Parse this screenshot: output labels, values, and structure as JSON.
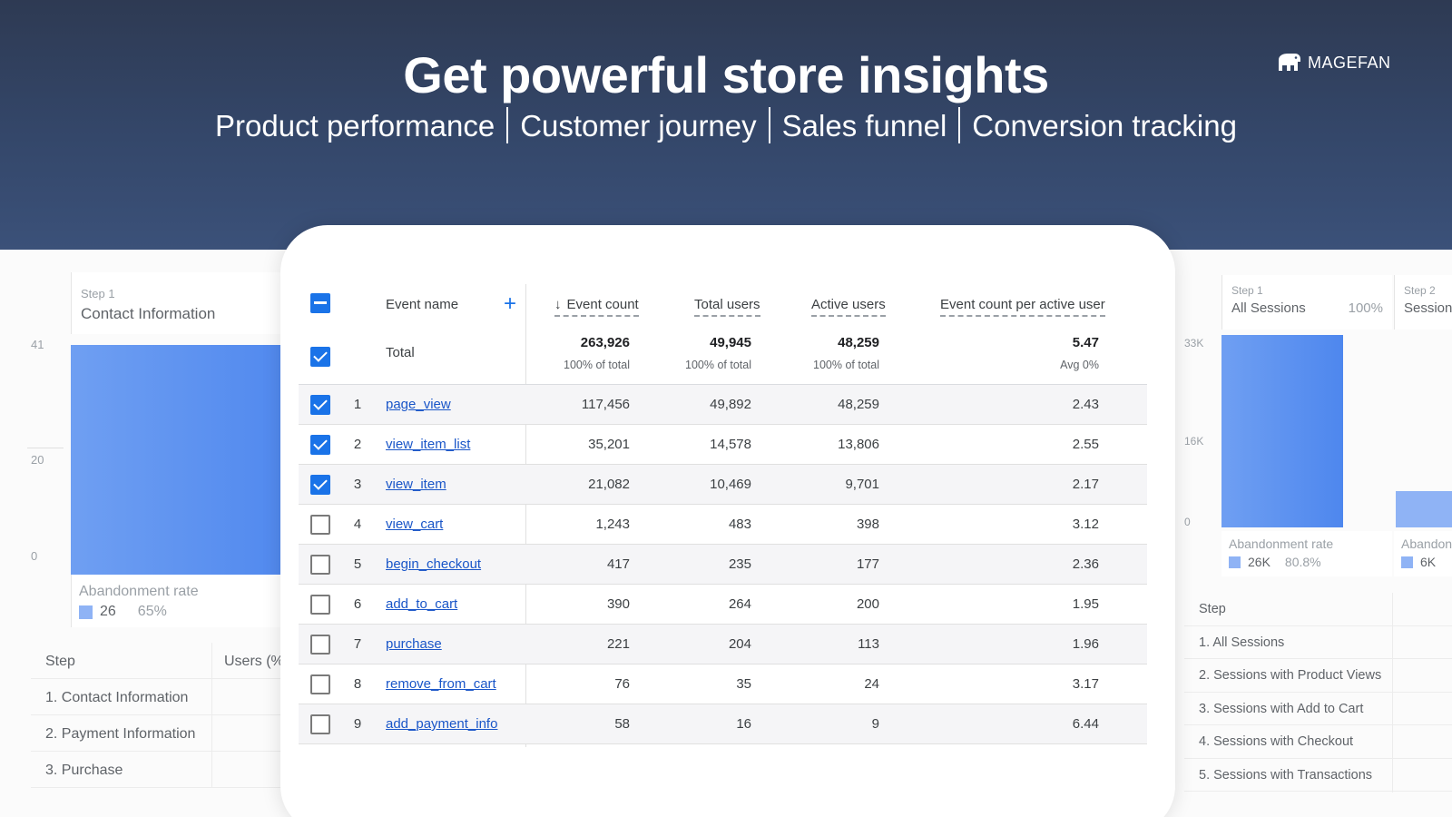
{
  "hero": {
    "title": "Get powerful store insights",
    "subtitle": [
      "Product performance",
      "Customer journey",
      "Sales funnel",
      "Conversion tracking"
    ],
    "brand": "MAGEFAN"
  },
  "left_panel": {
    "y_ticks": [
      "41",
      "20",
      "0"
    ],
    "step_label": "Step 1",
    "step_name": "Contact Information",
    "abandon_label": "Abandonment rate",
    "abandon_value": "26",
    "abandon_pct": "65%",
    "table_headers": [
      "Step",
      "Users (%"
    ],
    "table_rows": [
      "1. Contact Information",
      "2. Payment Information",
      "3. Purchase"
    ]
  },
  "right_panel": {
    "y_ticks": [
      "33K",
      "16K",
      "0"
    ],
    "step1_label": "Step 1",
    "step1_name": "All Sessions",
    "step1_pct": "100%",
    "step2_label": "Step 2",
    "step2_name": "Session",
    "abandon1_label": "Abandonment rate",
    "abandon1_value": "26K",
    "abandon1_pct": "80.8%",
    "abandon2_label": "Abandon",
    "abandon2_value": "6K",
    "table_header": "Step",
    "table_rows": [
      "1. All Sessions",
      "2. Sessions with Product Views",
      "3. Sessions with Add to Cart",
      "4. Sessions with Checkout",
      "5. Sessions with Transactions"
    ]
  },
  "table": {
    "headers": {
      "event_name": "Event name",
      "add": "+",
      "event_count": "Event count",
      "total_users": "Total users",
      "active_users": "Active users",
      "per_user": "Event count per active user"
    },
    "total": {
      "label": "Total",
      "event_count": "263,926",
      "event_count_sub": "100% of total",
      "total_users": "49,945",
      "total_users_sub": "100% of total",
      "active_users": "48,259",
      "active_users_sub": "100% of total",
      "per_user": "5.47",
      "per_user_sub": "Avg 0%"
    },
    "rows": [
      {
        "idx": "1",
        "event": "page_view",
        "event_count": "117,456",
        "total_users": "49,892",
        "active_users": "48,259",
        "per_user": "2.43",
        "checked": true
      },
      {
        "idx": "2",
        "event": "view_item_list",
        "event_count": "35,201",
        "total_users": "14,578",
        "active_users": "13,806",
        "per_user": "2.55",
        "checked": true
      },
      {
        "idx": "3",
        "event": "view_item",
        "event_count": "21,082",
        "total_users": "10,469",
        "active_users": "9,701",
        "per_user": "2.17",
        "checked": true
      },
      {
        "idx": "4",
        "event": "view_cart",
        "event_count": "1,243",
        "total_users": "483",
        "active_users": "398",
        "per_user": "3.12",
        "checked": false
      },
      {
        "idx": "5",
        "event": "begin_checkout",
        "event_count": "417",
        "total_users": "235",
        "active_users": "177",
        "per_user": "2.36",
        "checked": false
      },
      {
        "idx": "6",
        "event": "add_to_cart",
        "event_count": "390",
        "total_users": "264",
        "active_users": "200",
        "per_user": "1.95",
        "checked": false
      },
      {
        "idx": "7",
        "event": "purchase",
        "event_count": "221",
        "total_users": "204",
        "active_users": "113",
        "per_user": "1.96",
        "checked": false
      },
      {
        "idx": "8",
        "event": "remove_from_cart",
        "event_count": "76",
        "total_users": "35",
        "active_users": "24",
        "per_user": "3.17",
        "checked": false
      },
      {
        "idx": "9",
        "event": "add_payment_info",
        "event_count": "58",
        "total_users": "16",
        "active_users": "9",
        "per_user": "6.44",
        "checked": false
      }
    ]
  }
}
